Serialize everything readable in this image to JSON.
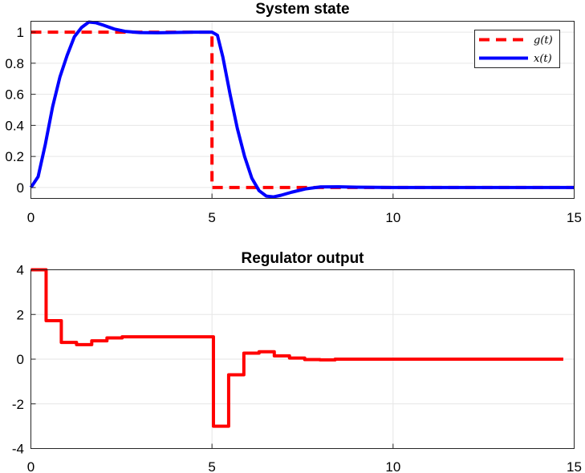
{
  "chart_data": [
    {
      "type": "line",
      "title": "System state",
      "xlim": [
        0,
        15
      ],
      "ylim": [
        -0.07,
        1.07
      ],
      "xticks": [
        0,
        5,
        10,
        15
      ],
      "yticks": [
        0,
        0.2,
        0.4,
        0.6,
        0.8,
        1
      ],
      "xtick_labels": [
        "0",
        "5",
        "10",
        "15"
      ],
      "ytick_labels": [
        "0",
        "0.2",
        "0.4",
        "0.6",
        "0.8",
        "1"
      ],
      "grid": true,
      "legend_position": "top-right",
      "series": [
        {
          "name": "g(t)",
          "color": "#ff0000",
          "style": "dashed",
          "x": [
            0,
            5,
            5,
            15
          ],
          "y": [
            1,
            1,
            0,
            0
          ]
        },
        {
          "name": "x(t)",
          "color": "#0000ff",
          "style": "solid",
          "x": [
            0,
            0.2,
            0.4,
            0.6,
            0.8,
            1.0,
            1.2,
            1.4,
            1.6,
            1.8,
            2.0,
            2.3,
            2.6,
            3.0,
            3.5,
            4.0,
            4.5,
            5.0,
            5.15,
            5.3,
            5.5,
            5.7,
            5.9,
            6.1,
            6.3,
            6.5,
            6.7,
            6.9,
            7.2,
            7.6,
            8.0,
            8.5,
            9.0,
            10.0,
            11.0,
            12.0,
            13.0,
            14.0,
            15.0
          ],
          "y": [
            0,
            0.07,
            0.28,
            0.52,
            0.71,
            0.85,
            0.97,
            1.03,
            1.065,
            1.06,
            1.045,
            1.02,
            1.005,
            0.997,
            0.996,
            0.998,
            1.0,
            1.0,
            0.98,
            0.84,
            0.6,
            0.38,
            0.2,
            0.06,
            -0.02,
            -0.055,
            -0.06,
            -0.05,
            -0.03,
            -0.008,
            0.004,
            0.005,
            0.002,
            0,
            0,
            0,
            0,
            0,
            0
          ]
        }
      ]
    },
    {
      "type": "line",
      "title": "Regulator output",
      "xlim": [
        0,
        15
      ],
      "ylim": [
        -4,
        4
      ],
      "xticks": [
        0,
        5,
        10,
        15
      ],
      "yticks": [
        -4,
        -2,
        0,
        2,
        4
      ],
      "xtick_labels": [
        "0",
        "5",
        "10",
        "15"
      ],
      "ytick_labels": [
        "-4",
        "-2",
        "0",
        "2",
        "4"
      ],
      "grid": true,
      "series": [
        {
          "color": "#ff0000",
          "style": "stairs",
          "x": [
            0,
            0.42,
            0.84,
            1.26,
            1.68,
            2.1,
            2.52,
            2.94,
            3.36,
            3.78,
            4.2,
            4.62,
            5.04,
            5.46,
            5.88,
            6.3,
            6.72,
            7.14,
            7.56,
            7.98,
            8.4,
            8.82,
            9.24,
            9.66,
            10.08,
            10.5,
            10.92,
            11.34,
            11.76,
            12.18,
            12.6,
            13.02,
            13.44,
            13.86,
            14.28,
            14.7
          ],
          "y": [
            4.0,
            1.72,
            0.75,
            0.65,
            0.82,
            0.95,
            1.0,
            1.0,
            1.0,
            1.0,
            1.0,
            1.0,
            -3.0,
            -0.7,
            0.27,
            0.33,
            0.15,
            0.05,
            -0.02,
            -0.03,
            0.0,
            0.0,
            0.0,
            0.0,
            0.0,
            0.0,
            0.0,
            0.0,
            0.0,
            0.0,
            0.0,
            0.0,
            0.0,
            0.0,
            0.0,
            0.0
          ]
        }
      ]
    }
  ]
}
